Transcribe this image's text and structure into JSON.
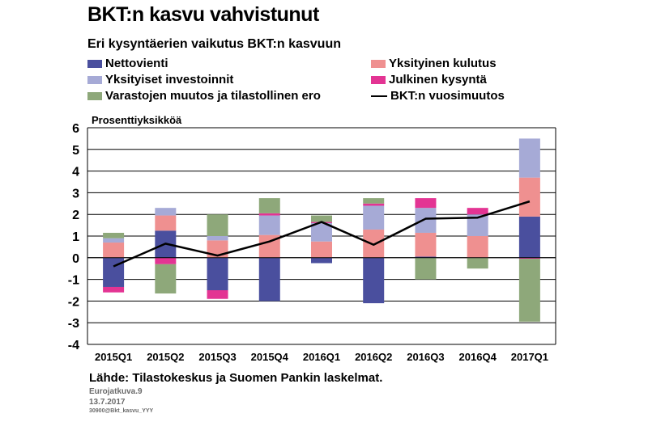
{
  "title": "BKT:n kasvu vahvistunut",
  "subtitle": "Eri kysyntäerien vaikutus BKT:n kasvuun",
  "source": "Lähde: Tilastokeskus ja Suomen Pankin laskelmat.",
  "meta": {
    "series": "Eurojatkuva.9",
    "date": "13.7.2017",
    "code": "30900@Bkt_kasvu_YYY"
  },
  "legend": [
    {
      "key": "nettovienti",
      "label": "Nettovienti",
      "color": "#4a4f9e",
      "kind": "box"
    },
    {
      "key": "yksityinen_kulutus",
      "label": "Yksityinen kulutus",
      "color": "#ef9090",
      "kind": "box"
    },
    {
      "key": "yksityiset_investoinnit",
      "label": "Yksityiset investoinnit",
      "color": "#a6aad6",
      "kind": "box"
    },
    {
      "key": "julkinen_kysynta",
      "label": "Julkinen kysyntä",
      "color": "#e33493",
      "kind": "box"
    },
    {
      "key": "varastojen_muutos",
      "label": "Varastojen muutos ja tilastollinen ero",
      "color": "#8ea87a",
      "kind": "box"
    },
    {
      "key": "bkt_vuosimuutos",
      "label": "BKT:n vuosimuutos",
      "color": "#000000",
      "kind": "line"
    }
  ],
  "chart_data": {
    "type": "bar",
    "stacked": true,
    "ylabel": "Prosenttiyksikköä",
    "ylim": [
      -4,
      6
    ],
    "yticks": [
      6,
      5,
      4,
      3,
      2,
      1,
      0,
      -1,
      -2,
      -3,
      -4
    ],
    "grid": true,
    "categories": [
      "2015Q1",
      "2015Q2",
      "2015Q3",
      "2015Q4",
      "2016Q1",
      "2016Q2",
      "2016Q3",
      "2016Q4",
      "2017Q1"
    ],
    "series": [
      {
        "name": "Nettovienti",
        "key": "nettovienti",
        "values": [
          -1.35,
          1.25,
          -1.5,
          -2.0,
          -0.25,
          -2.1,
          0.05,
          0.0,
          1.9
        ]
      },
      {
        "name": "Yksityinen kulutus",
        "key": "yksityinen_kulutus",
        "values": [
          0.7,
          0.7,
          0.8,
          1.05,
          0.75,
          1.3,
          1.1,
          1.0,
          1.8
        ]
      },
      {
        "name": "Yksityiset investoinnit",
        "key": "yksityiset_investoinnit",
        "values": [
          0.2,
          0.35,
          0.2,
          0.9,
          0.85,
          1.1,
          1.15,
          1.0,
          1.8
        ]
      },
      {
        "name": "Julkinen kysyntä",
        "key": "julkinen_kysynta",
        "values": [
          -0.25,
          -0.3,
          -0.4,
          0.1,
          0.05,
          0.1,
          0.45,
          0.3,
          -0.05
        ]
      },
      {
        "name": "Varastojen muutos ja tilastollinen ero",
        "key": "varastojen_muutos",
        "values": [
          0.25,
          -1.35,
          1.0,
          0.7,
          0.3,
          0.25,
          -1.0,
          -0.5,
          -2.9
        ]
      },
      {
        "name": "BKT:n vuosimuutos",
        "key": "bkt_vuosimuutos",
        "type": "line",
        "values": [
          -0.4,
          0.65,
          0.1,
          0.75,
          1.65,
          0.6,
          1.8,
          1.85,
          2.6
        ]
      }
    ]
  }
}
